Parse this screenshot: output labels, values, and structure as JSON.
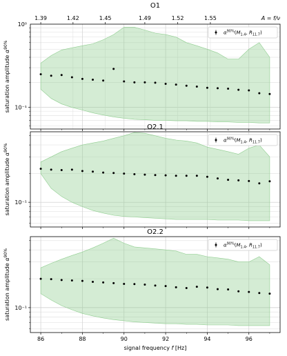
{
  "chart_data": [
    {
      "type": "scatter",
      "title": "O1",
      "ylabel": "saturation amplitude α^90%",
      "yscale": "log",
      "ylim": [
        0.055,
        1.0
      ],
      "yticks": [
        {
          "value": 0.1,
          "label": "10⁻¹"
        },
        {
          "value": 1.0,
          "label": "10⁰"
        }
      ],
      "xlim": [
        85.5,
        97.5
      ],
      "top_axis": {
        "label": "A = f/ν",
        "ticks": [
          "1.39",
          "1.42",
          "1.45",
          "1.49",
          "1.52",
          "1.55"
        ]
      },
      "legend": {
        "position": "top-right",
        "label": "α^90%(M1.4, R11.7)"
      },
      "x": [
        86.0,
        86.5,
        87.0,
        87.5,
        88.0,
        88.5,
        89.0,
        89.5,
        90.0,
        90.5,
        91.0,
        91.5,
        92.0,
        92.5,
        93.0,
        93.5,
        94.0,
        94.5,
        95.0,
        95.5,
        96.0,
        96.5,
        97.0
      ],
      "series": [
        {
          "values": [
            0.25,
            0.24,
            0.245,
            0.23,
            0.22,
            0.215,
            0.21,
            0.29,
            0.205,
            0.2,
            0.2,
            0.198,
            0.192,
            0.188,
            0.182,
            0.178,
            0.172,
            0.17,
            0.168,
            0.163,
            0.16,
            0.148,
            0.145
          ]
        }
      ],
      "band": {
        "upper": [
          0.34,
          0.42,
          0.49,
          0.52,
          0.55,
          0.58,
          0.65,
          0.75,
          0.92,
          0.92,
          0.85,
          0.78,
          0.75,
          0.7,
          0.6,
          0.55,
          0.5,
          0.45,
          0.38,
          0.38,
          0.5,
          0.6,
          0.4
        ],
        "lower": [
          0.165,
          0.128,
          0.11,
          0.1,
          0.093,
          0.086,
          0.081,
          0.077,
          0.074,
          0.072,
          0.071,
          0.07,
          0.07,
          0.069,
          0.069,
          0.068,
          0.068,
          0.067,
          0.067,
          0.066,
          0.066,
          0.065,
          0.065
        ]
      }
    },
    {
      "type": "scatter",
      "title": "O2.1",
      "ylabel": "saturation amplitude α^90%",
      "yscale": "log",
      "ylim": [
        0.055,
        0.55
      ],
      "yticks": [
        {
          "value": 0.1,
          "label": "10⁻¹"
        }
      ],
      "xlim": [
        85.5,
        97.5
      ],
      "legend": {
        "position": "top-right",
        "label": "α^90%(M1.4, R11.7)"
      },
      "x": [
        86.0,
        86.5,
        87.0,
        87.5,
        88.0,
        88.5,
        89.0,
        89.5,
        90.0,
        90.5,
        91.0,
        91.5,
        92.0,
        92.5,
        93.0,
        93.5,
        94.0,
        94.5,
        95.0,
        95.5,
        96.0,
        96.5,
        97.0
      ],
      "series": [
        {
          "values": [
            0.225,
            0.22,
            0.218,
            0.22,
            0.213,
            0.21,
            0.205,
            0.203,
            0.2,
            0.197,
            0.195,
            0.193,
            0.192,
            0.19,
            0.19,
            0.19,
            0.185,
            0.178,
            0.172,
            0.17,
            0.167,
            0.158,
            0.166
          ]
        }
      ],
      "band": {
        "upper": [
          0.265,
          0.3,
          0.34,
          0.37,
          0.4,
          0.42,
          0.44,
          0.47,
          0.5,
          0.54,
          0.53,
          0.5,
          0.47,
          0.45,
          0.44,
          0.42,
          0.38,
          0.36,
          0.34,
          0.32,
          0.37,
          0.4,
          0.3
        ],
        "lower": [
          0.2,
          0.14,
          0.115,
          0.1,
          0.09,
          0.082,
          0.077,
          0.073,
          0.071,
          0.07,
          0.069,
          0.068,
          0.067,
          0.066,
          0.066,
          0.066,
          0.066,
          0.065,
          0.065,
          0.065,
          0.064,
          0.064,
          0.064
        ]
      }
    },
    {
      "type": "scatter",
      "title": "O2.2",
      "ylabel": "saturation amplitude α^90%",
      "xlabel": "signal frequency f [Hz]",
      "yscale": "log",
      "ylim": [
        0.055,
        0.55
      ],
      "yticks": [
        {
          "value": 0.1,
          "label": "10⁻¹"
        }
      ],
      "xlim": [
        85.5,
        97.5
      ],
      "xticks": [
        86,
        88,
        90,
        92,
        94,
        96
      ],
      "legend": {
        "position": "top-right",
        "label": "α^90%(M1.4, R11.7)"
      },
      "x": [
        86.0,
        86.5,
        87.0,
        87.5,
        88.0,
        88.5,
        89.0,
        89.5,
        90.0,
        90.5,
        91.0,
        91.5,
        92.0,
        92.5,
        93.0,
        93.5,
        94.0,
        94.5,
        95.0,
        95.5,
        96.0,
        96.5,
        97.0
      ],
      "series": [
        {
          "values": [
            0.2,
            0.198,
            0.194,
            0.192,
            0.19,
            0.186,
            0.183,
            0.18,
            0.177,
            0.176,
            0.174,
            0.17,
            0.168,
            0.163,
            0.16,
            0.165,
            0.162,
            0.156,
            0.155,
            0.148,
            0.146,
            0.142,
            0.14
          ]
        }
      ],
      "band": {
        "upper": [
          0.26,
          0.29,
          0.32,
          0.35,
          0.38,
          0.42,
          0.47,
          0.53,
          0.47,
          0.43,
          0.42,
          0.41,
          0.4,
          0.39,
          0.36,
          0.36,
          0.34,
          0.33,
          0.32,
          0.3,
          0.3,
          0.34,
          0.28
        ],
        "lower": [
          0.14,
          0.12,
          0.105,
          0.095,
          0.087,
          0.082,
          0.078,
          0.075,
          0.073,
          0.071,
          0.07,
          0.069,
          0.068,
          0.068,
          0.067,
          0.067,
          0.066,
          0.066,
          0.066,
          0.065,
          0.065,
          0.065,
          0.065
        ]
      }
    }
  ]
}
